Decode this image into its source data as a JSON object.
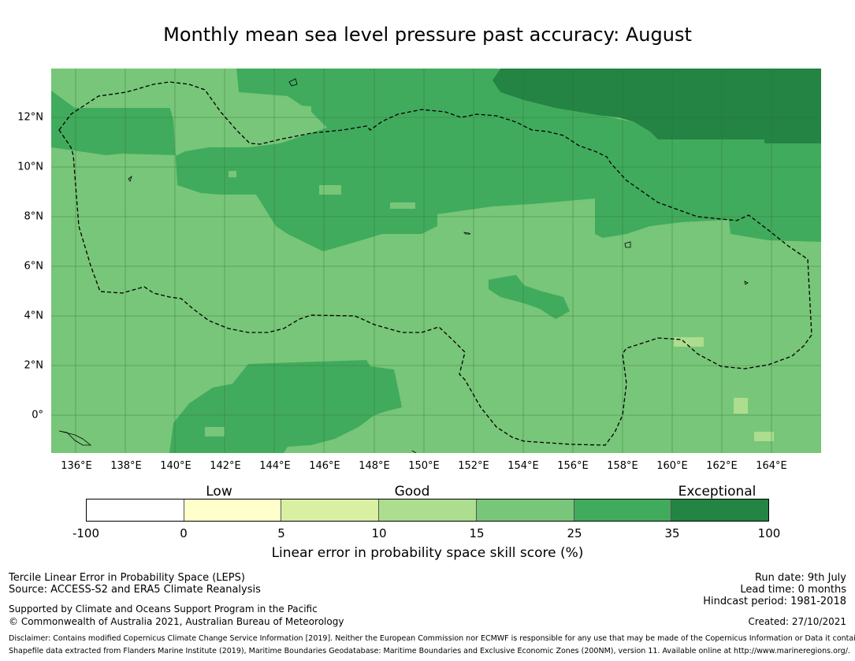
{
  "title": "Monthly mean sea level pressure past accuracy: August",
  "map": {
    "x_ticks": [
      "136°E",
      "138°E",
      "140°E",
      "142°E",
      "144°E",
      "146°E",
      "148°E",
      "150°E",
      "152°E",
      "154°E",
      "156°E",
      "158°E",
      "160°E",
      "162°E",
      "164°E"
    ],
    "y_ticks": [
      "12°N",
      "10°N",
      "8°N",
      "6°N",
      "4°N",
      "2°N",
      "0°"
    ],
    "colors": {
      "skill_15_25": "#78c679",
      "skill_25_35": "#41ab5d",
      "skill_35_100": "#238443",
      "skill_10_15": "#addd8e",
      "skill_5_10": "#d9f0a3"
    }
  },
  "colorbar": {
    "categories": [
      "Low",
      "Good",
      "Exceptional"
    ],
    "ticks": [
      "-100",
      "0",
      "5",
      "10",
      "15",
      "25",
      "35",
      "100"
    ],
    "colors": [
      "#ffffff",
      "#ffffcc",
      "#d9f0a3",
      "#addd8e",
      "#78c679",
      "#41ab5d",
      "#238443"
    ],
    "label": "Linear error in probability space skill score (%)"
  },
  "footer": {
    "line1": "Tercile Linear Error in Probability Space (LEPS)",
    "line2": "Source: ACCESS-S2 and ERA5 Climate Reanalysis",
    "line3": "Supported by Climate and Oceans Support Program in the Pacific",
    "line4": "© Commonwealth of Australia 2021, Australian Bureau of Meteorology",
    "run_date": "Run date: 9th July",
    "lead_time": "Lead time: 0 months",
    "hindcast": "Hindcast period: 1981-2018",
    "created": "Created: 27/10/2021",
    "disclaimer": "Disclaimer: Contains modified Copernicus Climate Change Service Information [2019]. Neither the European Commission nor ECMWF is responsible for any use that may be made of the Copernicus Information or Data it contains.",
    "shapefile": "Shapefile data extracted from Flanders Marine Institute (2019), Maritime Boundaries Geodatabase: Maritime Boundaries and Exclusive Economic Zones (200NM), version 11. Available online at http://www.marineregions.org/."
  }
}
